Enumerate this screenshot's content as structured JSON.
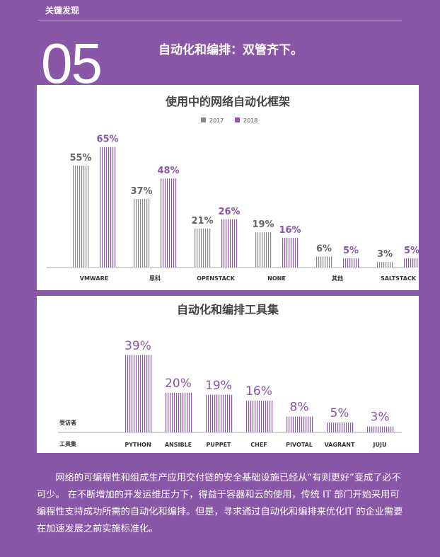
{
  "page": {
    "section_label": "关键发现",
    "number": "05",
    "headline": "自动化和编排：双管齐下。",
    "body_text": "网络的可编程性和组成生产应用交付链的安全基础设施已经从“有则更好”变成了必不可少。 在不断增加的开发运维压力下，得益于容器和云的使用，传统 IT 部门开始采用可编程性支持成功所需的自动化和编排。但是，寻求通过自动化和编排来优化IT 的企业需要在加速发展之前实施标准化。",
    "colors": {
      "background": "#8a56a8",
      "gray": "#888888",
      "purple": "#8a56a8"
    }
  },
  "chart_data": [
    {
      "type": "bar",
      "title": "使用中的网络自动化框架",
      "categories": [
        "VMWARE",
        "思科",
        "OPENSTACK",
        "NONE",
        "其他",
        "SALTSTACK"
      ],
      "series": [
        {
          "name": "2017",
          "values": [
            55,
            37,
            21,
            19,
            6,
            3
          ],
          "labels": [
            "55%",
            "37%",
            "21%",
            "19%",
            "6%",
            "3%"
          ],
          "color": "#888888"
        },
        {
          "name": "2018",
          "values": [
            65,
            48,
            26,
            16,
            5,
            5
          ],
          "labels": [
            "65%",
            "48%",
            "26%",
            "16%",
            "5%",
            "5%"
          ],
          "color": "#8a56a8"
        }
      ],
      "unit": "%",
      "legend": "top-center"
    },
    {
      "type": "bar",
      "title": "自动化和编排工具集",
      "categories": [
        "PYTHON",
        "ANSIBLE",
        "PUPPET",
        "CHEF",
        "PIVOTAL",
        "VAGRANT",
        "JUJU"
      ],
      "series": [
        {
          "values": [
            39,
            20,
            19,
            16,
            8,
            5,
            3
          ],
          "labels": [
            "39%",
            "20%",
            "19%",
            "16%",
            "8%",
            "5%",
            "3%"
          ],
          "color": "#8a56a8"
        }
      ],
      "unit": "%",
      "side_labels": {
        "respondents": "受访者",
        "toolset": "工具集"
      }
    }
  ]
}
